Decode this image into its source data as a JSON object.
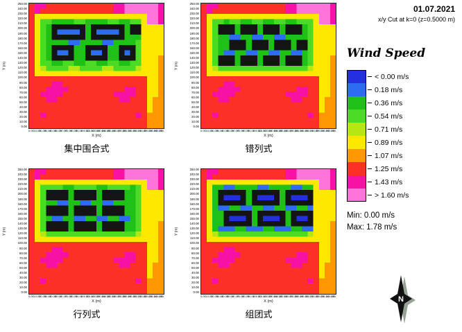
{
  "header": {
    "date": "01.07.2021",
    "cut": "x/y Cut at k=0 (z=0.5000 m)"
  },
  "legend": {
    "title": "Wind Speed",
    "entries": [
      {
        "label": "< 0.00 m/s",
        "color": "#2430df"
      },
      {
        "label": "0.18 m/s",
        "color": "#2d6bf0"
      },
      {
        "label": "0.36 m/s",
        "color": "#1fc116"
      },
      {
        "label": "0.54 m/s",
        "color": "#4cdb25"
      },
      {
        "label": "0.71 m/s",
        "color": "#b8e612"
      },
      {
        "label": "0.89 m/s",
        "color": "#ffe800"
      },
      {
        "label": "1.07 m/s",
        "color": "#ff9800"
      },
      {
        "label": "1.25 m/s",
        "color": "#fb3026"
      },
      {
        "label": "1.43 m/s",
        "color": "#f711a5"
      },
      {
        "label": "> 1.60 m/s",
        "color": "#ff74d8"
      }
    ],
    "min_label": "Min: 0.00 m/s",
    "max_label": "Max: 1.78 m/s"
  },
  "compass": {
    "label": "N"
  },
  "axes": {
    "x_title": "X (m)",
    "y_title": "Y (m)",
    "ticks": [
      "0.00",
      "10.00",
      "20.00",
      "30.00",
      "40.00",
      "50.00",
      "60.00",
      "70.00",
      "80.00",
      "90.00",
      "100.00",
      "110.00",
      "120.00",
      "130.00",
      "140.00",
      "150.00",
      "160.00",
      "170.00",
      "180.00",
      "190.00",
      "200.00",
      "210.00",
      "220.00",
      "230.00",
      "240.00",
      "250.00"
    ]
  },
  "chart_data": {
    "type": "heatmap",
    "title": "Wind Speed",
    "units": "m/s",
    "x_range": [
      0,
      250
    ],
    "y_range": [
      0,
      250
    ],
    "grid_size": [
      24,
      24
    ],
    "min_value": 0.0,
    "max_value": 1.78,
    "value_levels": [
      "< 0.00",
      "0.18",
      "0.36",
      "0.54",
      "0.71",
      "0.89",
      "1.07",
      "1.25",
      "1.43",
      "> 1.60"
    ],
    "palette": {
      "a": "#2430df",
      "b": "#2d6bf0",
      "c": "#1fc116",
      "d": "#4cdb25",
      "e": "#b8e612",
      "f": "#ffe800",
      "g": "#ff9800",
      "h": "#fb3026",
      "i": "#f711a5",
      "j": "#ff74d8",
      "K": "#141414"
    },
    "building_key": "K",
    "panels": [
      {
        "caption": "集中围合式",
        "rows": [
          "hiihhhhhhhhhhhhiijjjjjji",
          "hihhhhhhhhhhhhhiijjjjjji",
          "hffffffffffffffffffffjji",
          "hfddccccddccccddccddfjji",
          "hfdcKKKKKKcKKKKKKcKKffff",
          "hfdcKbbbbKcKbbbbKcKKffff",
          "hfdcKKKKKKcKKKKKKcccffff",
          "hfdccccbbccccbbccccdffff",
          "hfdcKKKKccKKKKccKKKdffff",
          "hfdcKbbKccKbbKccKbKdffff",
          "hfdcKKKKccKKKKccKKKdfffg",
          "hfddccddccddccddccddfffg",
          "hfeddddeeddddeeddddefffg",
          "hffffffffffffffffffffffg",
          "hhhhhhhhhhhhhhhhhhhhhffg",
          "hhhhiihhhhhhhhhhhhhhhffg",
          "hhhiiiihhhhhhhhhhiihhffg",
          "hhiiiihhhhhhhhhiiiihhffg",
          "hhhiihhhhhhhhhhhiihhhfgg",
          "hhhhhhhhhhhhhhhhhhhhhfgg",
          "hhhhhhhhhhhhhhhhhhhhhfgg",
          "hhihhhhhhhhhhhhhhhhihggg",
          "hhhhhhhhhhhhhhhhhhhhhggg",
          "hhhhhhhhhhhhhhhhhhhhhggg"
        ]
      },
      {
        "caption": "错列式",
        "rows": [
          "hiihhhhhhhhhhhhiijjjjjji",
          "hihhhhhhhhhhhhhiijjjjjji",
          "hffffffffffffffffffffjji",
          "hfddcddccddccddccdddfjji",
          "hfdKKKcKKKcKKKcKKKcdffff",
          "hfdKKKcKKKcKKKcKKKcdffff",
          "hfdccbbccbbccbbccccdffff",
          "hfdccKKKcKKKcKKKcKKdffff",
          "hfdccKKKcKKKcKKKcKKdffff",
          "hfdcbbccbbccbbccbbcdffff",
          "hfdKKKcKKKcKKKcKKKcdfffg",
          "hfdKKKcKKKcKKKcKKKcdfffg",
          "hfeddddddddddddddddefffg",
          "hffffffffffffffffffffffg",
          "hhhhhhhhhhhhhhhhhhhhhffg",
          "hhhhiihhhhhhhhhhhhhhhffg",
          "hhhiiiihhhhhhhhhhiihhffg",
          "hhiiiihhhhhhhhhiiiihhffg",
          "hhhiihhhhhhhhhhhiihhhfgg",
          "hhhhhhhhhhhhhhhhhhhhhfgg",
          "hhhhhhhhhhhhhhhhhhhhhfgg",
          "hhihhhhhhhhhhhhhhhhihggg",
          "hhhhhhhhhhhhhhhhhhhhhggg",
          "hhhhhhhhhhhhhhhhhhhhhggg"
        ]
      },
      {
        "caption": "行列式",
        "rows": [
          "hiihhhhhhhhhhhhiijjjjjji",
          "hihhhhhhhhhhhhhiijjjjjji",
          "hffffffffffffffffffffjji",
          "hfddddccddddccddddcdfjji",
          "hfdKKKKcKKKKcKKKKccdffff",
          "hfdKKKKcKKKKcKKKKccdffff",
          "hfdccbbccbbccbbccccdffff",
          "hfdKKKKcKKKKcKKKKccdffff",
          "hfdKKKKcKKKKcKKKKccdffff",
          "hfdcbbccbbccbbccbbcdffff",
          "hfdKKKKcKKKKcKKKKccdfffg",
          "hfdKKKKcKKKKcKKKKccdfffg",
          "hfeddddddddddddddddefffg",
          "hffffffffffffffffffffffg",
          "hhhhhhhhhhhhhhhhhhhhhffg",
          "hhhhiihhhhhhhhhhhhhhhffg",
          "hhhiiiihhhhhhhhhhiihhffg",
          "hhiiiihhhhhhhhhiiiihhffg",
          "hhhiihhhhhhhhhhhiihhhfgg",
          "hhhhhhhhhhhhhhhhhhhhhfgg",
          "hhhhhhhhhhhhhhhhhhhhhfgg",
          "hhihhhhhhhhhhhhhhhhihggg",
          "hhhhhhhhhhhhhhhhhhhhhggg",
          "hhhhhhhhhhhhhhhhhhhhhggg"
        ]
      },
      {
        "caption": "组团式",
        "rows": [
          "hiihhhhhhhhhhhhiijjjjjji",
          "hihhhhhhhhhhhhhiijjjjjji",
          "hffffffffffffffffffffjji",
          "hfccbbccccbbccccbbccfjji",
          "hfcKKKKKcKKKKKcKKKKKffff",
          "hfcKaaaKcKaaaKcKaaaKffff",
          "hfcKKKKKcKKKKKcKKKKKffff",
          "hfcbbccbbccbbccbbccbffff",
          "hfccKKKKKcKKKKKcKKKKffff",
          "hfccKaaaKcKaaaKcKaaKffff",
          "hfccKKKKKcKKKKKcKKKKfffg",
          "hfcbbbccbbbccbbbccbbfffg",
          "hfeddddddddddddddddefffg",
          "hffffffffffffffffffffffg",
          "hhhhhhhhhhhhhhhhhhhhhffg",
          "hhhhiihhhhhhhhhhhhhhhffg",
          "hhhiiiihhhhhhhhhhiihhffg",
          "hhiiiihhhhhhhhhiiiihhffg",
          "hhhiihhhhhhhhhhhiihhhfgg",
          "hhhhhhhhhhhhhhhhhhhhhfgg",
          "hhhhhhhhhhhhhhhhhhhhhfgg",
          "hhihhhhhhhhhhhhhhhhihggg",
          "hhhhhhhhhhhhhhhhhhhhhggg",
          "hhhhhhhhhhhhhhhhhhhhhggg"
        ]
      }
    ]
  }
}
